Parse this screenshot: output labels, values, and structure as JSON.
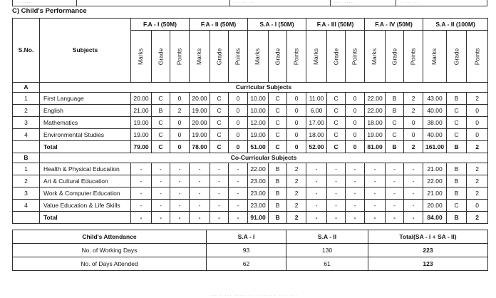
{
  "heading": "C) Child's Performance",
  "top_clipped_row": {
    "fragments": [
      "·· ·····",
      "",
      "··· ······",
      "···· ·····",
      "·· ······"
    ]
  },
  "performance": {
    "col_headers": {
      "sno": "S.No.",
      "subjects": "Subjects"
    },
    "exam_groups": [
      "F.A - I (50M)",
      "F.A - II (50M)",
      "S.A - I (50M)",
      "F.A - III (50M)",
      "F.A - IV (50M)",
      "S.A - II (100M)"
    ],
    "sub_headers": [
      "Marks",
      "Grade",
      "Points"
    ],
    "sections": [
      {
        "key": "A",
        "title": "Curricular Subjects",
        "rows": [
          {
            "sno": "1",
            "subject": "First Language",
            "bold": false,
            "cells": [
              "20.00",
              "C",
              "0",
              "20.00",
              "C",
              "0",
              "10.00",
              "C",
              "0",
              "11.00",
              "C",
              "0",
              "22.00",
              "B",
              "2",
              "43.00",
              "B",
              "2"
            ]
          },
          {
            "sno": "2",
            "subject": "English",
            "bold": false,
            "cells": [
              "21.00",
              "B",
              "2",
              "19.00",
              "C",
              "0",
              "10.00",
              "C",
              "0",
              "6.00",
              "C",
              "0",
              "22.00",
              "B",
              "2",
              "40.00",
              "C",
              "0"
            ]
          },
          {
            "sno": "3",
            "subject": "Mathematics",
            "bold": false,
            "cells": [
              "19.00",
              "C",
              "0",
              "20.00",
              "C",
              "0",
              "12.00",
              "C",
              "0",
              "17.00",
              "C",
              "0",
              "18.00",
              "C",
              "0",
              "38.00",
              "C",
              "0"
            ]
          },
          {
            "sno": "4",
            "subject": "Environmental Studies",
            "bold": false,
            "cells": [
              "19.00",
              "C",
              "0",
              "19.00",
              "C",
              "0",
              "19.00",
              "C",
              "0",
              "18.00",
              "C",
              "0",
              "19.00",
              "C",
              "0",
              "40.00",
              "C",
              "0"
            ]
          },
          {
            "sno": "",
            "subject": "Total",
            "bold": true,
            "cells": [
              "79.00",
              "C",
              "0",
              "78.00",
              "C",
              "0",
              "51.00",
              "C",
              "0",
              "52.00",
              "C",
              "0",
              "81.00",
              "B",
              "2",
              "161.00",
              "B",
              "2"
            ]
          }
        ]
      },
      {
        "key": "B",
        "title": "Co-Curricular Subjects",
        "rows": [
          {
            "sno": "1",
            "subject": "Health & Physical Education",
            "bold": false,
            "cells": [
              "-",
              "-",
              "-",
              "-",
              "-",
              "-",
              "22.00",
              "B",
              "2",
              "-",
              "-",
              "-",
              "-",
              "-",
              "-",
              "21.00",
              "B",
              "2"
            ]
          },
          {
            "sno": "2",
            "subject": "Art & Cultural Education",
            "bold": false,
            "cells": [
              "-",
              "-",
              "-",
              "-",
              "-",
              "-",
              "23.00",
              "B",
              "2",
              "-",
              "-",
              "-",
              "-",
              "-",
              "-",
              "22.00",
              "B",
              "2"
            ]
          },
          {
            "sno": "3",
            "subject": "Work & Computer Education",
            "bold": false,
            "cells": [
              "-",
              "-",
              "-",
              "-",
              "-",
              "-",
              "23.00",
              "B",
              "2",
              "-",
              "-",
              "-",
              "-",
              "-",
              "-",
              "21.00",
              "B",
              "2"
            ]
          },
          {
            "sno": "4",
            "subject": "Value Education & Life Skills",
            "bold": false,
            "cells": [
              "-",
              "-",
              "-",
              "-",
              "-",
              "-",
              "23.00",
              "B",
              "2",
              "-",
              "-",
              "-",
              "-",
              "-",
              "-",
              "20.00",
              "C",
              "0"
            ]
          },
          {
            "sno": "",
            "subject": "Total",
            "bold": true,
            "cells": [
              "-",
              "-",
              "-",
              "-",
              "-",
              "-",
              "91.00",
              "B",
              "2",
              "-",
              "-",
              "-",
              "-",
              "-",
              "-",
              "84.00",
              "B",
              "2"
            ]
          }
        ]
      }
    ]
  },
  "attendance": {
    "headers": [
      "Child's Attendance",
      "S.A - I",
      "S.A - II",
      "Total(SA - I + SA - II)"
    ],
    "rows": [
      {
        "label": "No. of Working Days",
        "values": [
          "93",
          "130",
          "223"
        ]
      },
      {
        "label": "No. of Days Attended",
        "values": [
          "62",
          "61",
          "123"
        ]
      }
    ]
  },
  "footer_fragment": "··· · ··· ····· ·· ········ ···· ···"
}
